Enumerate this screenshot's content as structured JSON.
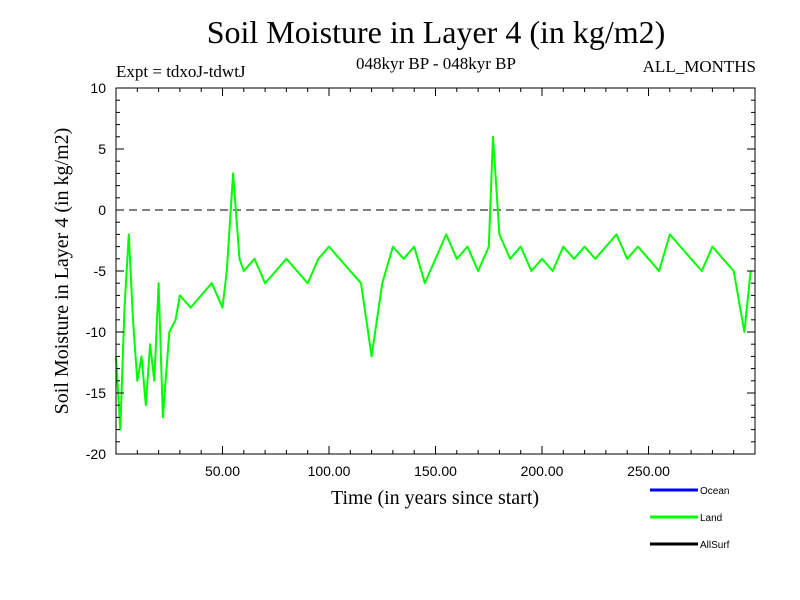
{
  "header": {
    "title": "Soil Moisture in Layer 4 (in kg/m2)",
    "subtitle": "048kyr BP - 048kyr BP",
    "experiment": "Expt = tdxoJ-tdwtJ",
    "months": "ALL_MONTHS"
  },
  "chart_data": {
    "type": "line",
    "title": "Soil Moisture in Layer 4 (in kg/m2)",
    "xlabel": "Time (in years since start)",
    "ylabel": "Soil Moisture in Layer 4 (in kg/m2)",
    "xlim": [
      0,
      300
    ],
    "ylim": [
      -20,
      10
    ],
    "x_ticks": [
      50,
      100,
      150,
      200,
      250
    ],
    "x_tick_labels": [
      "50.00",
      "100.00",
      "150.00",
      "200.00",
      "250.00"
    ],
    "y_ticks": [
      -20,
      -15,
      -10,
      -5,
      0,
      5,
      10
    ],
    "y_tick_labels": [
      "-20",
      "-15",
      "-10",
      "-5",
      "0",
      "5",
      "10"
    ],
    "reference_line": 0,
    "series": [
      {
        "name": "Land",
        "color": "#00ff00",
        "x": [
          0,
          2,
          4,
          6,
          8,
          10,
          12,
          14,
          16,
          18,
          20,
          22,
          25,
          28,
          30,
          35,
          40,
          45,
          50,
          52,
          55,
          58,
          60,
          65,
          70,
          75,
          80,
          85,
          90,
          95,
          100,
          105,
          110,
          115,
          120,
          125,
          130,
          135,
          140,
          145,
          150,
          155,
          160,
          165,
          170,
          175,
          177,
          180,
          185,
          190,
          195,
          200,
          205,
          210,
          215,
          220,
          225,
          230,
          235,
          240,
          245,
          250,
          255,
          260,
          265,
          270,
          275,
          280,
          285,
          290,
          295,
          298
        ],
        "y": [
          -12,
          -18,
          -8,
          -2,
          -9,
          -14,
          -12,
          -16,
          -11,
          -14,
          -6,
          -17,
          -10,
          -9,
          -7,
          -8,
          -7,
          -6,
          -8,
          -5,
          3,
          -4,
          -5,
          -4,
          -6,
          -5,
          -4,
          -5,
          -6,
          -4,
          -3,
          -4,
          -5,
          -6,
          -12,
          -6,
          -3,
          -4,
          -3,
          -6,
          -4,
          -2,
          -4,
          -3,
          -5,
          -3,
          6,
          -2,
          -4,
          -3,
          -5,
          -4,
          -5,
          -3,
          -4,
          -3,
          -4,
          -3,
          -2,
          -4,
          -3,
          -4,
          -5,
          -2,
          -3,
          -4,
          -5,
          -3,
          -4,
          -5,
          -10,
          -5
        ]
      }
    ],
    "legend": [
      {
        "name": "Ocean",
        "color": "#0000ff"
      },
      {
        "name": "Land",
        "color": "#00ff00"
      },
      {
        "name": "AllSurf",
        "color": "#000000"
      }
    ]
  }
}
